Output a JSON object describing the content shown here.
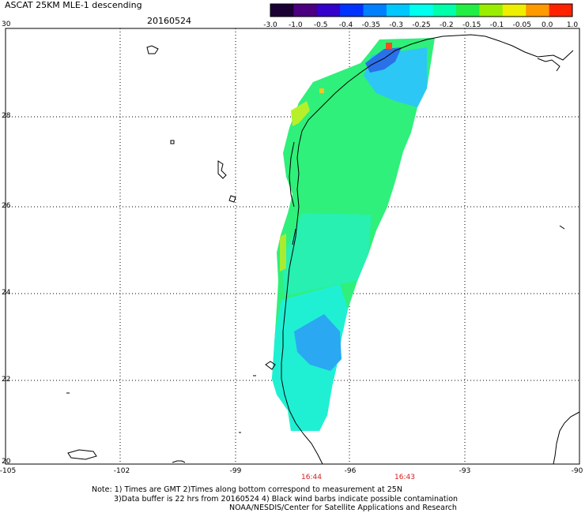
{
  "header": {
    "title": "ASCAT 25KM MLE-1 descending",
    "date": "20160524"
  },
  "colorbar": {
    "labels": [
      "-3.0",
      "-1.0",
      "-0.5",
      "-0.4",
      "-0.35",
      "-0.3",
      "-0.25",
      "-0.2",
      "-0.15",
      "-0.1",
      "-0.05",
      "0.0",
      "1.0"
    ],
    "colors": [
      "#1a0033",
      "#4a0080",
      "#3300cc",
      "#0033ff",
      "#0080ff",
      "#00c8ff",
      "#00ffee",
      "#00ffaa",
      "#22ee44",
      "#99ee00",
      "#eeee00",
      "#ff9900",
      "#ff2200"
    ]
  },
  "axes": {
    "lat_labels": [
      "30",
      "28",
      "26",
      "24",
      "22",
      "20"
    ],
    "lon_labels": [
      "-105",
      "-102",
      "-99",
      "-96",
      "-93",
      "-90"
    ]
  },
  "pass_times": [
    "16:44",
    "16:43"
  ],
  "notes": {
    "line1": "Note: 1) Times are GMT 2)Times along bottom correspond to measurement at 25N",
    "line2": "3)Data buffer is 22 hrs from 20160524 4) Black wind barbs indicate possible contamination",
    "line3": "NOAA/NESDIS/Center for Satellite Applications and Research"
  }
}
